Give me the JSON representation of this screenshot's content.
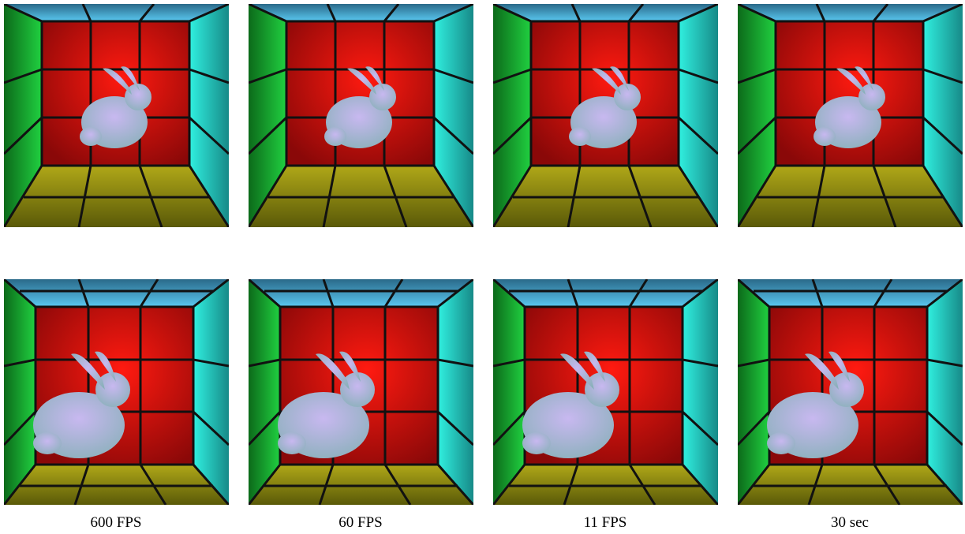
{
  "captions": [
    "600 FPS",
    "60 FPS",
    "11 FPS",
    "30 sec"
  ]
}
